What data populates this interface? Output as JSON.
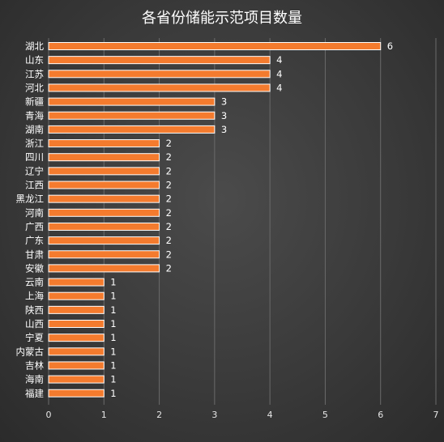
{
  "chart_data": {
    "type": "bar",
    "orientation": "horizontal",
    "title": "各省份储能示范项目数量",
    "xlabel": "",
    "ylabel": "",
    "categories": [
      "湖北",
      "山东",
      "江苏",
      "河北",
      "新疆",
      "青海",
      "湖南",
      "浙江",
      "四川",
      "辽宁",
      "江西",
      "黑龙江",
      "河南",
      "广西",
      "广东",
      "甘肃",
      "安徽",
      "云南",
      "上海",
      "陕西",
      "山西",
      "宁夏",
      "内蒙古",
      "吉林",
      "海南",
      "福建"
    ],
    "values": [
      6,
      4,
      4,
      4,
      3,
      3,
      3,
      2,
      2,
      2,
      2,
      2,
      2,
      2,
      2,
      2,
      2,
      1,
      1,
      1,
      1,
      1,
      1,
      1,
      1,
      1
    ],
    "xlim": [
      0,
      7
    ],
    "xticks": [
      0,
      1,
      2,
      3,
      4,
      5,
      6,
      7
    ],
    "grid": true,
    "data_labels": true,
    "bar_color": "#f47b2e",
    "bar_border_color": "#ffffff",
    "background_color": "#3c3c3c"
  }
}
